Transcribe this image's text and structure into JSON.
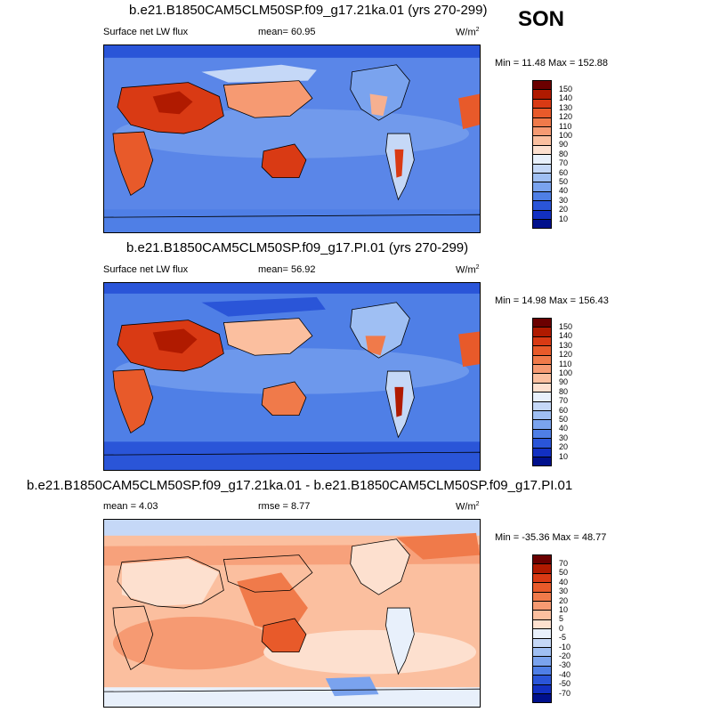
{
  "season": "SON",
  "panels": [
    {
      "title": "b.e21.B1850CAM5CLM50SP.f09_g17.21ka.01 (yrs 270-299)",
      "left_label": "Surface net LW flux",
      "mid_label": "mean=  60.95",
      "units": "W/m",
      "units_sup": "2",
      "minmax": "Min =  11.48 Max = 152.88",
      "colorbar": {
        "labels": [
          "150",
          "140",
          "130",
          "120",
          "110",
          "100",
          "90",
          "80",
          "70",
          "60",
          "50",
          "40",
          "30",
          "20",
          "10"
        ],
        "colors": [
          "#6b0000",
          "#b01a00",
          "#d93a14",
          "#e85a2a",
          "#f07a4a",
          "#f69a72",
          "#fbbf9f",
          "#fde0cf",
          "#e8f0fb",
          "#c5d8f7",
          "#9fbff3",
          "#7aa3ee",
          "#4f7fe6",
          "#2a55d8",
          "#1230c2",
          "#00108c"
        ]
      }
    },
    {
      "title": "b.e21.B1850CAM5CLM50SP.f09_g17.PI.01 (yrs 270-299)",
      "left_label": "Surface net LW flux",
      "mid_label": "mean=  56.92",
      "units": "W/m",
      "units_sup": "2",
      "minmax": "Min =  14.98 Max = 156.43",
      "colorbar": {
        "labels": [
          "150",
          "140",
          "130",
          "120",
          "110",
          "100",
          "90",
          "80",
          "70",
          "60",
          "50",
          "40",
          "30",
          "20",
          "10"
        ],
        "colors": [
          "#6b0000",
          "#b01a00",
          "#d93a14",
          "#e85a2a",
          "#f07a4a",
          "#f69a72",
          "#fbbf9f",
          "#fde0cf",
          "#e8f0fb",
          "#c5d8f7",
          "#9fbff3",
          "#7aa3ee",
          "#4f7fe6",
          "#2a55d8",
          "#1230c2",
          "#00108c"
        ]
      }
    },
    {
      "title": "b.e21.B1850CAM5CLM50SP.f09_g17.21ka.01 - b.e21.B1850CAM5CLM50SP.f09_g17.PI.01",
      "left_label": "mean =   4.03",
      "mid_label": "rmse =   8.77",
      "units": "W/m",
      "units_sup": "2",
      "minmax": "Min = -35.36 Max =  48.77",
      "colorbar": {
        "labels": [
          "70",
          "50",
          "40",
          "30",
          "20",
          "10",
          "5",
          "0",
          "-5",
          "-10",
          "-20",
          "-30",
          "-40",
          "-50",
          "-70"
        ],
        "colors": [
          "#6b0000",
          "#b01a00",
          "#d93a14",
          "#e85a2a",
          "#f07a4a",
          "#f69a72",
          "#fbbf9f",
          "#fde0cf",
          "#e8f0fb",
          "#c5d8f7",
          "#9fbff3",
          "#7aa3ee",
          "#4f7fe6",
          "#2a55d8",
          "#1230c2",
          "#00108c"
        ]
      }
    }
  ],
  "colors": {
    "ocean_mean": "#5a86e8",
    "ocean_dark": "#2a55d8",
    "land_hot": "#e85a2a",
    "diff_base": "#f6b090",
    "diff_cool": "#c5d8f7",
    "coast": "#000000"
  }
}
